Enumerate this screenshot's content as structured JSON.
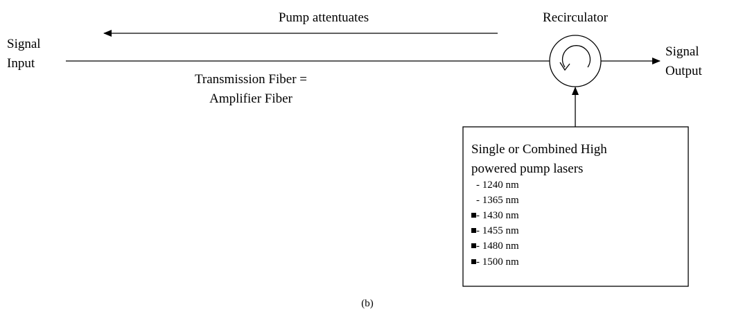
{
  "pump_label": "Pump attentuates",
  "recirculator_label": "Recirculator",
  "signal_input": [
    "Signal",
    "Input"
  ],
  "signal_output": [
    "Signal",
    "Output"
  ],
  "fiber_label": [
    "Transmission Fiber =",
    "Amplifier Fiber"
  ],
  "pump_box": {
    "title": [
      "Single or Combined High",
      "powered pump lasers"
    ],
    "items": [
      "- 1240 nm",
      "- 1365 nm",
      "- 1430 nm",
      "- 1455 nm",
      "- 1480 nm",
      "- 1500 nm"
    ]
  },
  "caption": "(b)"
}
